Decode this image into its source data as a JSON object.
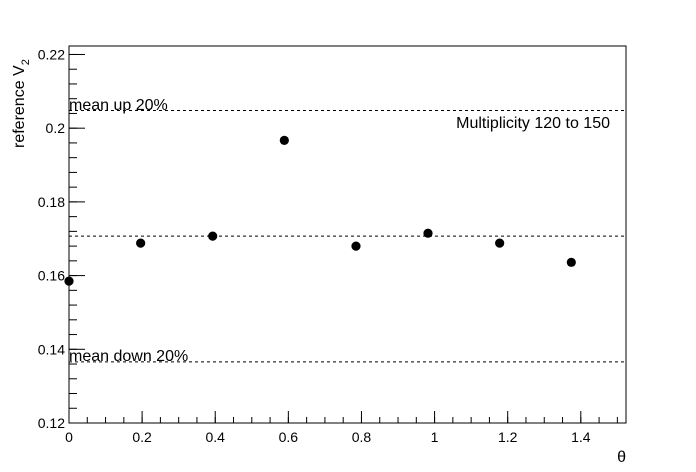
{
  "chart_data": {
    "type": "scatter",
    "title": "",
    "xlabel": "θ",
    "ylabel_main": "reference V",
    "ylabel_sub": "2",
    "xlim": [
      0,
      1.5236
    ],
    "ylim": [
      0.12,
      0.2223
    ],
    "x_ticks": [
      0,
      0.2,
      0.4,
      0.6,
      0.8,
      1,
      1.2,
      1.4
    ],
    "x_tick_labels": [
      "0",
      "0.2",
      "0.4",
      "0.6",
      "0.8",
      "1",
      "1.2",
      "1.4"
    ],
    "y_ticks": [
      0.12,
      0.14,
      0.16,
      0.18,
      0.2,
      0.22
    ],
    "y_tick_labels": [
      "0.12",
      "0.14",
      "0.16",
      "0.18",
      "0.2",
      "0.22"
    ],
    "grid": false,
    "series": [
      {
        "x": [
          0,
          0.196,
          0.393,
          0.589,
          0.785,
          0.982,
          1.178,
          1.374
        ],
        "y": [
          0.1585,
          0.1688,
          0.1707,
          0.1967,
          0.168,
          0.1715,
          0.1688,
          0.1636
        ]
      }
    ],
    "reference_lines": [
      {
        "y": 0.2048,
        "label": "mean up 20%"
      },
      {
        "y": 0.1707,
        "label": ""
      },
      {
        "y": 0.1366,
        "label": "mean down 20%"
      }
    ],
    "annotation": "Multiplicity 120 to 150"
  }
}
